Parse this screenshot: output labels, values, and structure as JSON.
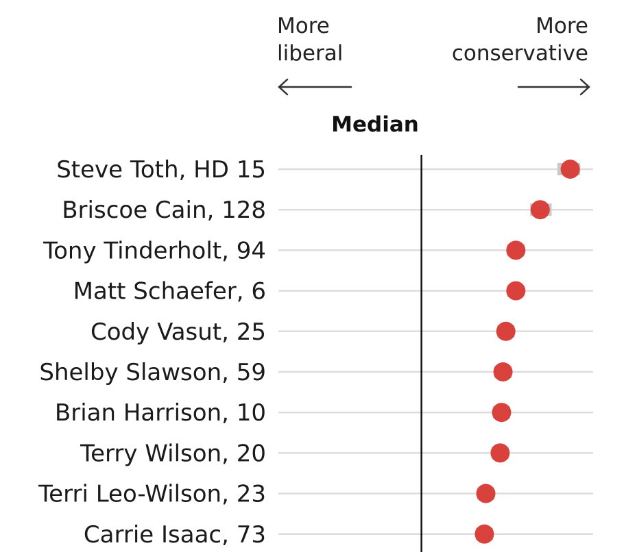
{
  "chart_data": {
    "type": "scatter",
    "title": "",
    "direction_left": [
      "More",
      "liberal"
    ],
    "direction_right": [
      "More",
      "conservative"
    ],
    "median_label": "Median",
    "xlim": [
      -1,
      1.2
    ],
    "median": 0,
    "colors": {
      "point": "#d9413d",
      "range": "#c9c9c9",
      "row_line": "#dddddd",
      "median_line": "#111111"
    },
    "rows": [
      {
        "label": "Steve Toth, HD 15",
        "value": 1.04,
        "low": 0.95,
        "high": 1.11
      },
      {
        "label": "Briscoe Cain, 128",
        "value": 0.83,
        "low": 0.76,
        "high": 0.91
      },
      {
        "label": "Tony Tinderholt, 94",
        "value": 0.66,
        "low": 0.6,
        "high": 0.72
      },
      {
        "label": "Matt Schaefer, 6",
        "value": 0.66,
        "low": 0.6,
        "high": 0.71
      },
      {
        "label": "Cody Vasut, 25",
        "value": 0.59,
        "low": 0.53,
        "high": 0.65
      },
      {
        "label": "Shelby Slawson, 59",
        "value": 0.57,
        "low": 0.51,
        "high": 0.63
      },
      {
        "label": "Brian Harrison, 10",
        "value": 0.56,
        "low": 0.5,
        "high": 0.62
      },
      {
        "label": "Terry Wilson, 20",
        "value": 0.55,
        "low": 0.49,
        "high": 0.61
      },
      {
        "label": "Terri Leo-Wilson, 23",
        "value": 0.45,
        "low": 0.39,
        "high": 0.51
      },
      {
        "label": "Carrie Isaac, 73",
        "value": 0.44,
        "low": 0.38,
        "high": 0.5
      }
    ]
  }
}
